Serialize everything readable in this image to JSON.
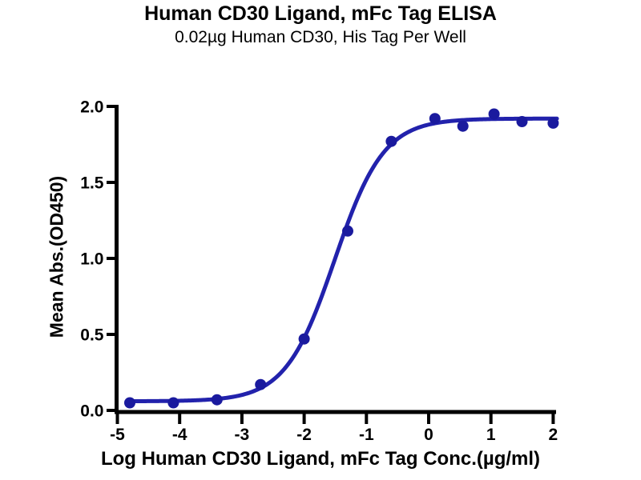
{
  "chart_data": {
    "type": "scatter",
    "title": "Human CD30 Ligand, mFc Tag ELISA",
    "subtitle": "0.02µg Human CD30, His Tag Per Well",
    "xlabel": "Log Human CD30 Ligand, mFc Tag Conc.(µg/ml)",
    "ylabel": "Mean Abs.(OD450)",
    "xlim": [
      -5,
      2.1
    ],
    "ylim": [
      0,
      2
    ],
    "grid": false,
    "legend": false,
    "x_ticks": [
      {
        "value": -5,
        "label": "-5"
      },
      {
        "value": -4,
        "label": "-4"
      },
      {
        "value": -3,
        "label": "-3"
      },
      {
        "value": -2,
        "label": "-2"
      },
      {
        "value": -1,
        "label": "-1"
      },
      {
        "value": 0,
        "label": "0"
      },
      {
        "value": 1,
        "label": "1"
      },
      {
        "value": 2,
        "label": "2"
      }
    ],
    "y_ticks": [
      {
        "value": 0.0,
        "label": "0.0"
      },
      {
        "value": 0.5,
        "label": "0.5"
      },
      {
        "value": 1.0,
        "label": "1.0"
      },
      {
        "value": 1.5,
        "label": "1.5"
      },
      {
        "value": 2.0,
        "label": "2.0"
      }
    ],
    "points": [
      {
        "x": -4.8,
        "y": 0.05
      },
      {
        "x": -4.1,
        "y": 0.05
      },
      {
        "x": -3.4,
        "y": 0.07
      },
      {
        "x": -2.7,
        "y": 0.17
      },
      {
        "x": -2.0,
        "y": 0.47
      },
      {
        "x": -1.3,
        "y": 1.18
      },
      {
        "x": -0.6,
        "y": 1.77
      },
      {
        "x": 0.1,
        "y": 1.92
      },
      {
        "x": 0.55,
        "y": 1.87
      },
      {
        "x": 1.05,
        "y": 1.95
      },
      {
        "x": 1.5,
        "y": 1.9
      },
      {
        "x": 2.0,
        "y": 1.89
      }
    ],
    "fit_curve": {
      "model": "4PL",
      "bottom": 0.06,
      "top": 1.92,
      "log_ec50": -1.51,
      "hill_slope": 1.1,
      "x_start": -4.8,
      "x_end": 2.06
    },
    "colors": {
      "curve": "#2222ac",
      "points": "#1a1a9e",
      "axis": "#000000",
      "text": "#000000",
      "background": "#ffffff"
    }
  }
}
